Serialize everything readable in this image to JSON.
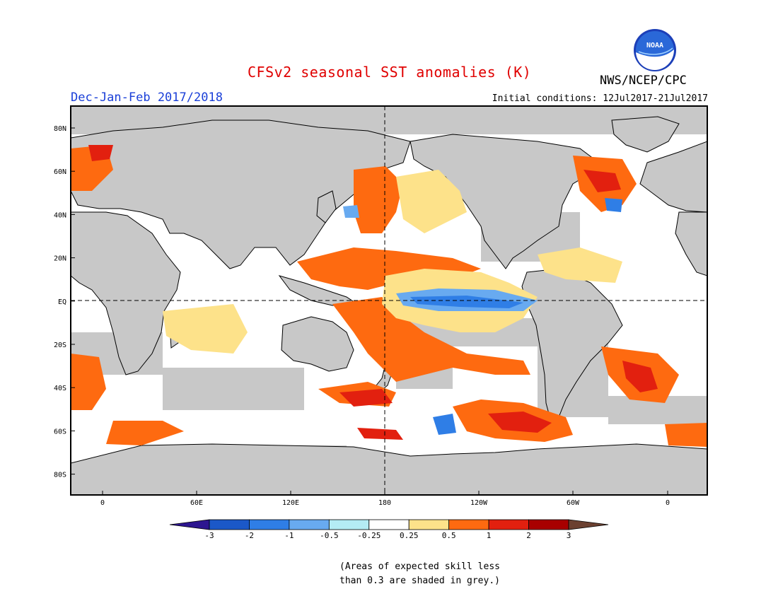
{
  "header": {
    "title": "CFSv2 seasonal SST anomalies (K)",
    "agency": "NWS/NCEP/CPC",
    "logo_text": "NOAA",
    "season": "Dec-Jan-Feb 2017/2018",
    "initial_conditions": "Initial conditions: 12Jul2017-21Jul2017"
  },
  "map": {
    "lat_labels": [
      "80N",
      "60N",
      "40N",
      "20N",
      "EQ",
      "20S",
      "40S",
      "60S",
      "80S"
    ],
    "lon_labels": [
      "0",
      "60E",
      "120E",
      "180",
      "120W",
      "60W",
      "0"
    ],
    "colors": {
      "land": "#c8c8c8",
      "coast": "#000000",
      "skill_mask": "#c8c8c8"
    }
  },
  "colorbar": {
    "labels": [
      "-3",
      "-2",
      "-1",
      "-0.5",
      "-0.25",
      "0.25",
      "0.5",
      "1",
      "2",
      "3"
    ],
    "colors": [
      "#2d1690",
      "#1b58c8",
      "#2f7ee6",
      "#68aaf0",
      "#b4ecf4",
      "#ffffff",
      "#fde28a",
      "#fe6a10",
      "#e2200f",
      "#a80000",
      "#6b4030"
    ]
  },
  "footnote": {
    "line1": "(Areas of expected skill less",
    "line2": "than 0.3 are shaded in grey.)"
  }
}
